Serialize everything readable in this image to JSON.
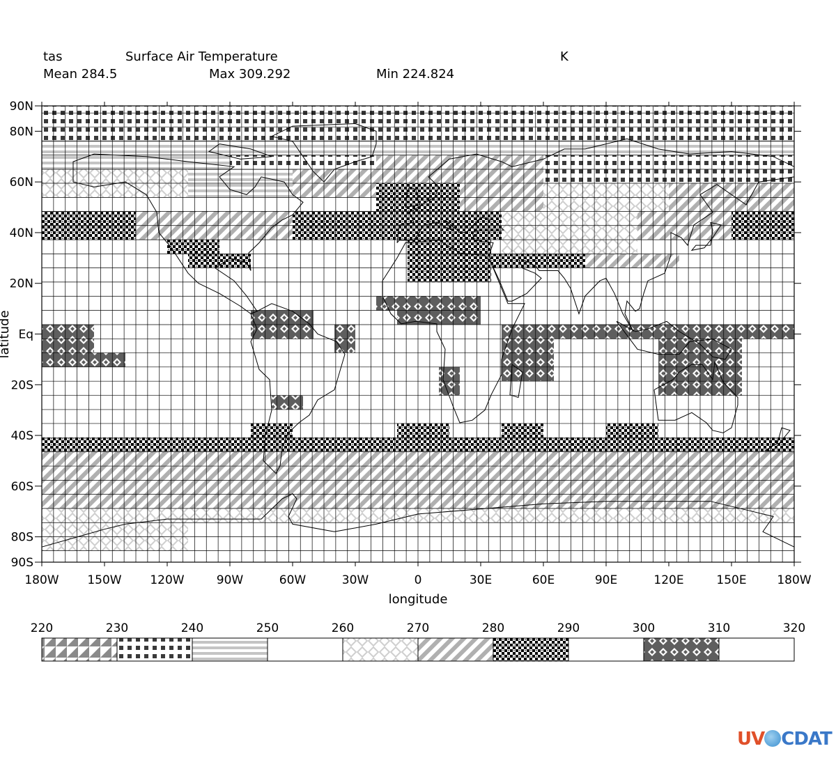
{
  "header": {
    "var_name": "tas",
    "long_name": "Surface Air Temperature",
    "units": "K",
    "mean": "Mean 284.5",
    "max": "Max 309.292",
    "min": "Min 224.824"
  },
  "logo": {
    "part1": "UV",
    "part2": "CDAT"
  },
  "chart_data": {
    "type": "heatmap",
    "title": "Surface Air Temperature",
    "variable": "tas",
    "units": "K",
    "xlabel": "longitude",
    "ylabel": "latitude",
    "x_ticks": [
      "180W",
      "150W",
      "120W",
      "90W",
      "60W",
      "30W",
      "0",
      "30E",
      "60E",
      "90E",
      "120E",
      "150E",
      "180W"
    ],
    "x_tick_values": [
      -180,
      -150,
      -120,
      -90,
      -60,
      -30,
      0,
      30,
      60,
      90,
      120,
      150,
      180
    ],
    "y_ticks": [
      "90N",
      "80N",
      "60N",
      "40N",
      "20N",
      "Eq",
      "20S",
      "40S",
      "60S",
      "80S",
      "90S"
    ],
    "y_tick_values": [
      90,
      80,
      60,
      40,
      20,
      0,
      -20,
      -40,
      -60,
      -80,
      -90
    ],
    "xlim": [
      -180,
      180
    ],
    "ylim": [
      -90,
      90
    ],
    "grid": true,
    "colorbar": {
      "levels": [
        220,
        230,
        240,
        250,
        260,
        270,
        280,
        290,
        300,
        310,
        320
      ],
      "patterns": [
        "triangles",
        "squares",
        "hstripes",
        "blank",
        "diamond-lattice",
        "diagonal",
        "checker",
        "blank",
        "diamond-dark",
        "blank"
      ]
    },
    "grid_spec": {
      "lon_step": 5.625,
      "lat_nodes": [
        90,
        87.2,
        81.7,
        76.2,
        70.6,
        65.0,
        59.5,
        53.9,
        48.4,
        42.8,
        37.2,
        31.6,
        26.1,
        20.5,
        14.9,
        9.3,
        3.7,
        -1.9,
        -7.4,
        -13.0,
        -18.6,
        -24.2,
        -29.8,
        -35.3,
        -40.9,
        -46.5,
        -52.1,
        -57.7,
        -63.2,
        -68.8,
        -74.4,
        -80.0,
        -85.5,
        -90
      ]
    },
    "regions": [
      {
        "lon": [
          -180,
          180
        ],
        "lat": [
          76.2,
          90
        ],
        "level": 235
      },
      {
        "lon": [
          -180,
          180
        ],
        "lat": [
          70.6,
          76.2
        ],
        "level": 245
      },
      {
        "lon": [
          -180,
          -90
        ],
        "lat": [
          65.0,
          70.6
        ],
        "level": 245
      },
      {
        "lon": [
          -90,
          -20
        ],
        "lat": [
          65.0,
          70.6
        ],
        "level": 235
      },
      {
        "lon": [
          -20,
          60
        ],
        "lat": [
          65.0,
          70.6
        ],
        "level": 275
      },
      {
        "lon": [
          60,
          180
        ],
        "lat": [
          59.5,
          70.6
        ],
        "level": 235
      },
      {
        "lon": [
          -180,
          -110
        ],
        "lat": [
          53.9,
          65.0
        ],
        "level": 265
      },
      {
        "lon": [
          -110,
          -60
        ],
        "lat": [
          53.9,
          65.0
        ],
        "level": 245
      },
      {
        "lon": [
          -60,
          0
        ],
        "lat": [
          53.9,
          65.0
        ],
        "level": 275
      },
      {
        "lon": [
          0,
          60
        ],
        "lat": [
          48.4,
          65.0
        ],
        "level": 275
      },
      {
        "lon": [
          60,
          120
        ],
        "lat": [
          48.4,
          59.5
        ],
        "level": 265
      },
      {
        "lon": [
          120,
          180
        ],
        "lat": [
          48.4,
          59.5
        ],
        "level": 275
      },
      {
        "lon": [
          -180,
          -135
        ],
        "lat": [
          37.2,
          48.4
        ],
        "level": 285
      },
      {
        "lon": [
          -135,
          -60
        ],
        "lat": [
          37.2,
          48.4
        ],
        "level": 275
      },
      {
        "lon": [
          -60,
          -20
        ],
        "lat": [
          37.2,
          48.4
        ],
        "level": 285
      },
      {
        "lon": [
          -20,
          20
        ],
        "lat": [
          48.4,
          59.5
        ],
        "level": 285
      },
      {
        "lon": [
          -20,
          40
        ],
        "lat": [
          37.2,
          48.4
        ],
        "level": 285
      },
      {
        "lon": [
          40,
          105
        ],
        "lat": [
          31.6,
          48.4
        ],
        "level": 265
      },
      {
        "lon": [
          105,
          160
        ],
        "lat": [
          37.2,
          48.4
        ],
        "level": 275
      },
      {
        "lon": [
          150,
          180
        ],
        "lat": [
          37.2,
          48.4
        ],
        "level": 285
      },
      {
        "lon": [
          -120,
          -95
        ],
        "lat": [
          31.6,
          37.2
        ],
        "level": 285
      },
      {
        "lon": [
          -110,
          -80
        ],
        "lat": [
          26.1,
          31.6
        ],
        "level": 285
      },
      {
        "lon": [
          -5,
          35
        ],
        "lat": [
          20.5,
          37.2
        ],
        "level": 285
      },
      {
        "lon": [
          35,
          80
        ],
        "lat": [
          26.1,
          31.6
        ],
        "level": 285
      },
      {
        "lon": [
          80,
          125
        ],
        "lat": [
          26.1,
          31.6
        ],
        "level": 275
      },
      {
        "lon": [
          -20,
          -10
        ],
        "lat": [
          9.3,
          14.9
        ],
        "level": 305
      },
      {
        "lon": [
          -10,
          30
        ],
        "lat": [
          3.7,
          14.9
        ],
        "level": 305
      },
      {
        "lon": [
          -80,
          -50
        ],
        "lat": [
          -1.9,
          9.3
        ],
        "level": 305
      },
      {
        "lon": [
          -40,
          -30
        ],
        "lat": [
          -7.4,
          3.7
        ],
        "level": 305
      },
      {
        "lon": [
          -180,
          -155
        ],
        "lat": [
          -7.4,
          3.7
        ],
        "level": 305
      },
      {
        "lon": [
          -180,
          -140
        ],
        "lat": [
          -13.0,
          -7.4
        ],
        "level": 305
      },
      {
        "lon": [
          40,
          180
        ],
        "lat": [
          -1.9,
          3.7
        ],
        "level": 305
      },
      {
        "lon": [
          40,
          65
        ],
        "lat": [
          -18.6,
          -1.9
        ],
        "level": 305
      },
      {
        "lon": [
          115,
          155
        ],
        "lat": [
          -24.2,
          -1.9
        ],
        "level": 305
      },
      {
        "lon": [
          10,
          20
        ],
        "lat": [
          -24.2,
          -13.0
        ],
        "level": 305
      },
      {
        "lon": [
          -70,
          -55
        ],
        "lat": [
          -29.8,
          -24.2
        ],
        "level": 305
      },
      {
        "lon": [
          -180,
          -40
        ],
        "lat": [
          -46.5,
          -40.9
        ],
        "level": 285
      },
      {
        "lon": [
          -180,
          -170
        ],
        "lat": [
          -52.1,
          -46.5
        ],
        "level": 285
      },
      {
        "lon": [
          -80,
          -60
        ],
        "lat": [
          -52.1,
          -35.3
        ],
        "level": 285
      },
      {
        "lon": [
          -10,
          15
        ],
        "lat": [
          -40.9,
          -35.3
        ],
        "level": 285
      },
      {
        "lon": [
          40,
          60
        ],
        "lat": [
          -40.9,
          -35.3
        ],
        "level": 285
      },
      {
        "lon": [
          90,
          115
        ],
        "lat": [
          -40.9,
          -35.3
        ],
        "level": 285
      },
      {
        "lon": [
          -40,
          180
        ],
        "lat": [
          -46.5,
          -40.9
        ],
        "level": 285
      },
      {
        "lon": [
          -180,
          180
        ],
        "lat": [
          -68.8,
          -46.5
        ],
        "level": 275
      },
      {
        "lon": [
          -180,
          180
        ],
        "lat": [
          -74.4,
          -68.8
        ],
        "level": 265
      },
      {
        "lon": [
          -180,
          -110
        ],
        "lat": [
          -85.5,
          -74.4
        ],
        "level": 265
      }
    ]
  }
}
